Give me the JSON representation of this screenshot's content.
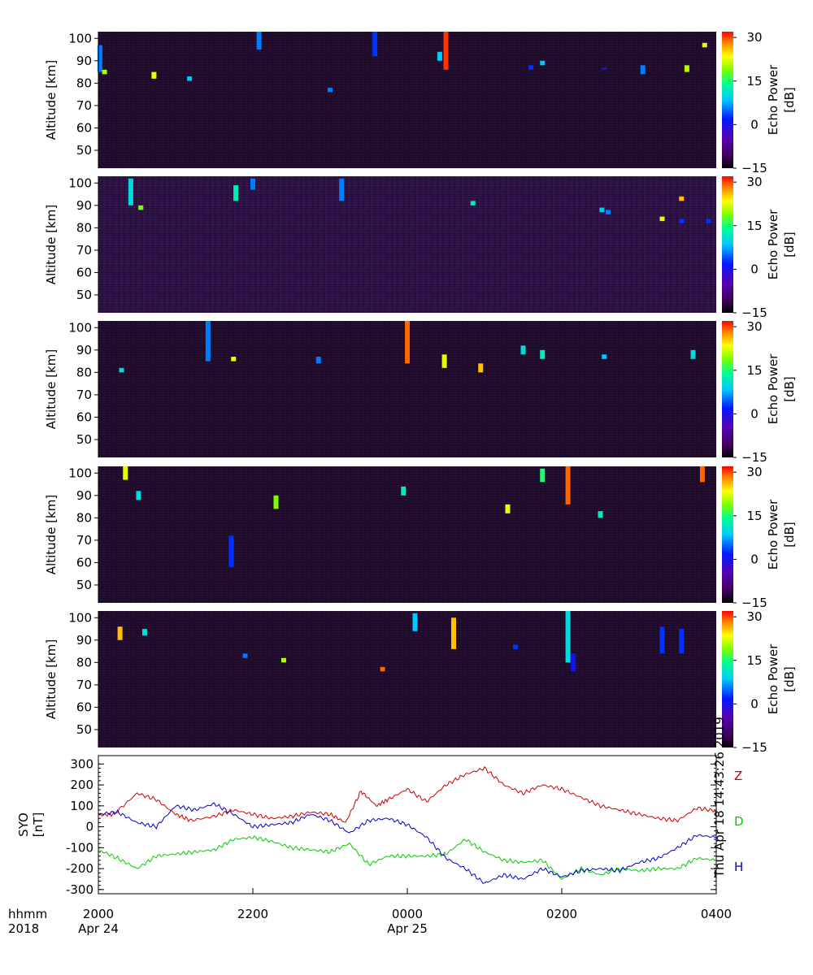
{
  "chart_data": [
    {
      "type": "heatmap",
      "panel": 1,
      "ylabel": "Altitude [km]",
      "yticks": [
        50,
        60,
        70,
        80,
        90,
        100
      ],
      "ylim": [
        42,
        103
      ],
      "colorbar": {
        "label": "Echo Power [dB]",
        "ticks": [
          "30",
          "15",
          "0",
          "−15"
        ],
        "range": [
          -15,
          32
        ]
      },
      "background_db": -12,
      "echoes": [
        {
          "t": 20.02,
          "alt_lo": 85,
          "alt_hi": 97,
          "db": 5
        },
        {
          "t": 20.08,
          "alt_lo": 84,
          "alt_hi": 86,
          "db": 20
        },
        {
          "t": 20.72,
          "alt_lo": 82,
          "alt_hi": 85,
          "db": 22
        },
        {
          "t": 21.18,
          "alt_lo": 81,
          "alt_hi": 83,
          "db": 8
        },
        {
          "t": 22.08,
          "alt_lo": 95,
          "alt_hi": 103,
          "db": 5
        },
        {
          "t": 23.58,
          "alt_lo": 92,
          "alt_hi": 103,
          "db": 2
        },
        {
          "t": 24.5,
          "alt_lo": 86,
          "alt_hi": 103,
          "db": 30
        },
        {
          "t": 24.42,
          "alt_lo": 90,
          "alt_hi": 94,
          "db": 8
        },
        {
          "t": 25.6,
          "alt_lo": 86,
          "alt_hi": 88,
          "db": 2
        },
        {
          "t": 25.75,
          "alt_lo": 88,
          "alt_hi": 90,
          "db": 8
        },
        {
          "t": 26.55,
          "alt_lo": 86,
          "alt_hi": 87,
          "db": 0
        },
        {
          "t": 27.05,
          "alt_lo": 84,
          "alt_hi": 88,
          "db": 5
        },
        {
          "t": 27.62,
          "alt_lo": 85,
          "alt_hi": 88,
          "db": 20
        },
        {
          "t": 27.85,
          "alt_lo": 96,
          "alt_hi": 98,
          "db": 22
        },
        {
          "t": 23.0,
          "alt_lo": 76,
          "alt_hi": 78,
          "db": 5
        }
      ]
    },
    {
      "type": "heatmap",
      "panel": 2,
      "ylabel": "Altitude [km]",
      "yticks": [
        50,
        60,
        70,
        80,
        90,
        100
      ],
      "ylim": [
        42,
        103
      ],
      "colorbar": {
        "label": "Echo Power [dB]",
        "ticks": [
          "30",
          "15",
          "0",
          "−15"
        ],
        "range": [
          -15,
          32
        ]
      },
      "background_db": -10,
      "echoes": [
        {
          "t": 20.42,
          "alt_lo": 90,
          "alt_hi": 102,
          "db": 10
        },
        {
          "t": 20.55,
          "alt_lo": 88,
          "alt_hi": 90,
          "db": 18
        },
        {
          "t": 21.78,
          "alt_lo": 92,
          "alt_hi": 99,
          "db": 12
        },
        {
          "t": 22.0,
          "alt_lo": 97,
          "alt_hi": 102,
          "db": 5
        },
        {
          "t": 23.15,
          "alt_lo": 92,
          "alt_hi": 102,
          "db": 5
        },
        {
          "t": 26.52,
          "alt_lo": 87,
          "alt_hi": 89,
          "db": 8
        },
        {
          "t": 26.6,
          "alt_lo": 86,
          "alt_hi": 88,
          "db": 5
        },
        {
          "t": 27.3,
          "alt_lo": 83,
          "alt_hi": 85,
          "db": 22
        },
        {
          "t": 27.55,
          "alt_lo": 82,
          "alt_hi": 84,
          "db": 2
        },
        {
          "t": 27.9,
          "alt_lo": 82,
          "alt_hi": 84,
          "db": 2
        },
        {
          "t": 27.55,
          "alt_lo": 92,
          "alt_hi": 94,
          "db": 25
        },
        {
          "t": 24.85,
          "alt_lo": 90,
          "alt_hi": 92,
          "db": 12
        }
      ]
    },
    {
      "type": "heatmap",
      "panel": 3,
      "ylabel": "Altitude [km]",
      "yticks": [
        50,
        60,
        70,
        80,
        90,
        100
      ],
      "ylim": [
        42,
        103
      ],
      "colorbar": {
        "label": "Echo Power [dB]",
        "ticks": [
          "30",
          "15",
          "0",
          "−15"
        ],
        "range": [
          -15,
          32
        ]
      },
      "background_db": -12,
      "echoes": [
        {
          "t": 20.3,
          "alt_lo": 80,
          "alt_hi": 82,
          "db": 10
        },
        {
          "t": 21.42,
          "alt_lo": 85,
          "alt_hi": 103,
          "db": 5
        },
        {
          "t": 21.75,
          "alt_lo": 85,
          "alt_hi": 87,
          "db": 22
        },
        {
          "t": 22.85,
          "alt_lo": 84,
          "alt_hi": 87,
          "db": 5
        },
        {
          "t": 24.0,
          "alt_lo": 84,
          "alt_hi": 103,
          "db": 28
        },
        {
          "t": 24.48,
          "alt_lo": 82,
          "alt_hi": 88,
          "db": 22
        },
        {
          "t": 24.95,
          "alt_lo": 80,
          "alt_hi": 84,
          "db": 25
        },
        {
          "t": 25.5,
          "alt_lo": 88,
          "alt_hi": 92,
          "db": 10
        },
        {
          "t": 25.75,
          "alt_lo": 86,
          "alt_hi": 90,
          "db": 12
        },
        {
          "t": 26.55,
          "alt_lo": 86,
          "alt_hi": 88,
          "db": 8
        },
        {
          "t": 27.7,
          "alt_lo": 86,
          "alt_hi": 90,
          "db": 10
        }
      ]
    },
    {
      "type": "heatmap",
      "panel": 4,
      "ylabel": "Altitude [km]",
      "yticks": [
        50,
        60,
        70,
        80,
        90,
        100
      ],
      "ylim": [
        42,
        103
      ],
      "colorbar": {
        "label": "Echo Power [dB]",
        "ticks": [
          "30",
          "15",
          "0",
          "−15"
        ],
        "range": [
          -15,
          32
        ]
      },
      "background_db": -14,
      "echoes": [
        {
          "t": 20.35,
          "alt_lo": 97,
          "alt_hi": 103,
          "db": 22
        },
        {
          "t": 20.52,
          "alt_lo": 88,
          "alt_hi": 92,
          "db": 10
        },
        {
          "t": 21.72,
          "alt_lo": 58,
          "alt_hi": 72,
          "db": 2
        },
        {
          "t": 22.3,
          "alt_lo": 84,
          "alt_hi": 90,
          "db": 18
        },
        {
          "t": 23.95,
          "alt_lo": 90,
          "alt_hi": 94,
          "db": 12
        },
        {
          "t": 25.3,
          "alt_lo": 82,
          "alt_hi": 86,
          "db": 22
        },
        {
          "t": 25.75,
          "alt_lo": 96,
          "alt_hi": 102,
          "db": 15
        },
        {
          "t": 26.08,
          "alt_lo": 86,
          "alt_hi": 103,
          "db": 28
        },
        {
          "t": 26.5,
          "alt_lo": 80,
          "alt_hi": 83,
          "db": 12
        },
        {
          "t": 27.82,
          "alt_lo": 96,
          "alt_hi": 103,
          "db": 28
        }
      ]
    },
    {
      "type": "heatmap",
      "panel": 5,
      "ylabel": "Altitude [km]",
      "yticks": [
        50,
        60,
        70,
        80,
        90,
        100
      ],
      "ylim": [
        42,
        103
      ],
      "colorbar": {
        "label": "Echo Power [dB]",
        "ticks": [
          "30",
          "15",
          "0",
          "−15"
        ],
        "range": [
          -15,
          32
        ]
      },
      "background_db": -11,
      "echoes": [
        {
          "t": 20.28,
          "alt_lo": 90,
          "alt_hi": 96,
          "db": 25
        },
        {
          "t": 20.6,
          "alt_lo": 92,
          "alt_hi": 95,
          "db": 10
        },
        {
          "t": 21.9,
          "alt_lo": 82,
          "alt_hi": 84,
          "db": 5
        },
        {
          "t": 22.4,
          "alt_lo": 80,
          "alt_hi": 82,
          "db": 20
        },
        {
          "t": 23.68,
          "alt_lo": 76,
          "alt_hi": 78,
          "db": 28
        },
        {
          "t": 24.1,
          "alt_lo": 94,
          "alt_hi": 102,
          "db": 8
        },
        {
          "t": 24.6,
          "alt_lo": 86,
          "alt_hi": 100,
          "db": 25
        },
        {
          "t": 25.4,
          "alt_lo": 86,
          "alt_hi": 88,
          "db": 2
        },
        {
          "t": 26.08,
          "alt_lo": 80,
          "alt_hi": 103,
          "db": 10
        },
        {
          "t": 26.15,
          "alt_lo": 76,
          "alt_hi": 84,
          "db": 0
        },
        {
          "t": 27.3,
          "alt_lo": 84,
          "alt_hi": 96,
          "db": 2
        },
        {
          "t": 27.55,
          "alt_lo": 84,
          "alt_hi": 95,
          "db": 2
        }
      ]
    },
    {
      "type": "line",
      "panel": 6,
      "ylabel": "SYO [nT]",
      "ylim": [
        -320,
        340
      ],
      "yticks": [
        -300,
        -200,
        -100,
        0,
        100,
        200,
        300
      ],
      "grid": false,
      "legend": "right",
      "x_unit": "hhmm",
      "xlim": [
        20.0,
        28.0
      ],
      "series": [
        {
          "name": "Z",
          "color": "#cc0000",
          "x": [
            20.0,
            20.2,
            20.5,
            20.75,
            21.0,
            21.2,
            21.5,
            21.75,
            22.0,
            22.25,
            22.5,
            22.75,
            23.0,
            23.2,
            23.4,
            23.6,
            23.75,
            24.0,
            24.25,
            24.5,
            24.75,
            25.0,
            25.25,
            25.5,
            25.75,
            26.0,
            26.25,
            26.5,
            26.75,
            27.0,
            27.25,
            27.5,
            27.75,
            28.0
          ],
          "y": [
            55,
            60,
            160,
            130,
            60,
            30,
            50,
            80,
            60,
            40,
            50,
            70,
            60,
            20,
            170,
            100,
            130,
            180,
            120,
            200,
            250,
            280,
            200,
            160,
            200,
            180,
            140,
            100,
            80,
            60,
            40,
            30,
            90,
            75
          ]
        },
        {
          "name": "D",
          "color": "#00cc00",
          "x": [
            20.0,
            20.25,
            20.5,
            20.75,
            21.0,
            21.25,
            21.5,
            21.75,
            22.0,
            22.25,
            22.5,
            22.75,
            23.0,
            23.25,
            23.5,
            23.75,
            24.0,
            24.25,
            24.5,
            24.75,
            25.0,
            25.25,
            25.5,
            25.75,
            26.0,
            26.25,
            26.5,
            26.75,
            27.0,
            27.25,
            27.5,
            27.75,
            28.0
          ],
          "y": [
            -110,
            -150,
            -200,
            -140,
            -130,
            -120,
            -110,
            -60,
            -50,
            -70,
            -100,
            -110,
            -120,
            -80,
            -180,
            -140,
            -140,
            -140,
            -130,
            -60,
            -120,
            -160,
            -170,
            -160,
            -250,
            -200,
            -230,
            -200,
            -210,
            -200,
            -200,
            -150,
            -160
          ]
        },
        {
          "name": "H",
          "color": "#0000cc",
          "x": [
            20.0,
            20.25,
            20.5,
            20.75,
            21.0,
            21.25,
            21.5,
            21.75,
            22.0,
            22.25,
            22.5,
            22.75,
            23.0,
            23.25,
            23.5,
            23.75,
            24.0,
            24.25,
            24.5,
            24.75,
            25.0,
            25.25,
            25.5,
            25.75,
            26.0,
            26.25,
            26.5,
            26.75,
            27.0,
            27.25,
            27.5,
            27.75,
            28.0
          ],
          "y": [
            60,
            70,
            20,
            0,
            100,
            80,
            110,
            60,
            0,
            10,
            20,
            60,
            30,
            -30,
            30,
            40,
            10,
            -50,
            -150,
            -200,
            -270,
            -230,
            -250,
            -200,
            -240,
            -210,
            -200,
            -210,
            -170,
            -150,
            -100,
            -40,
            -50
          ]
        }
      ]
    }
  ],
  "x_axis": {
    "row_label_1": "hhmm",
    "row_label_2": "2018",
    "ticks": [
      {
        "t": 20.0,
        "hhmm": "2000",
        "date": "Apr 24"
      },
      {
        "t": 22.0,
        "hhmm": "2200",
        "date": ""
      },
      {
        "t": 24.0,
        "hhmm": "0000",
        "date": "Apr 25"
      },
      {
        "t": 26.0,
        "hhmm": "0200",
        "date": ""
      },
      {
        "t": 28.0,
        "hhmm": "0400",
        "date": ""
      }
    ]
  },
  "side_stamp": "Thu Apr 18 14:43:26 2019",
  "colors": {
    "bg": "#ffffff",
    "axis": "#000000",
    "heat_bg": "#1a0a20"
  }
}
